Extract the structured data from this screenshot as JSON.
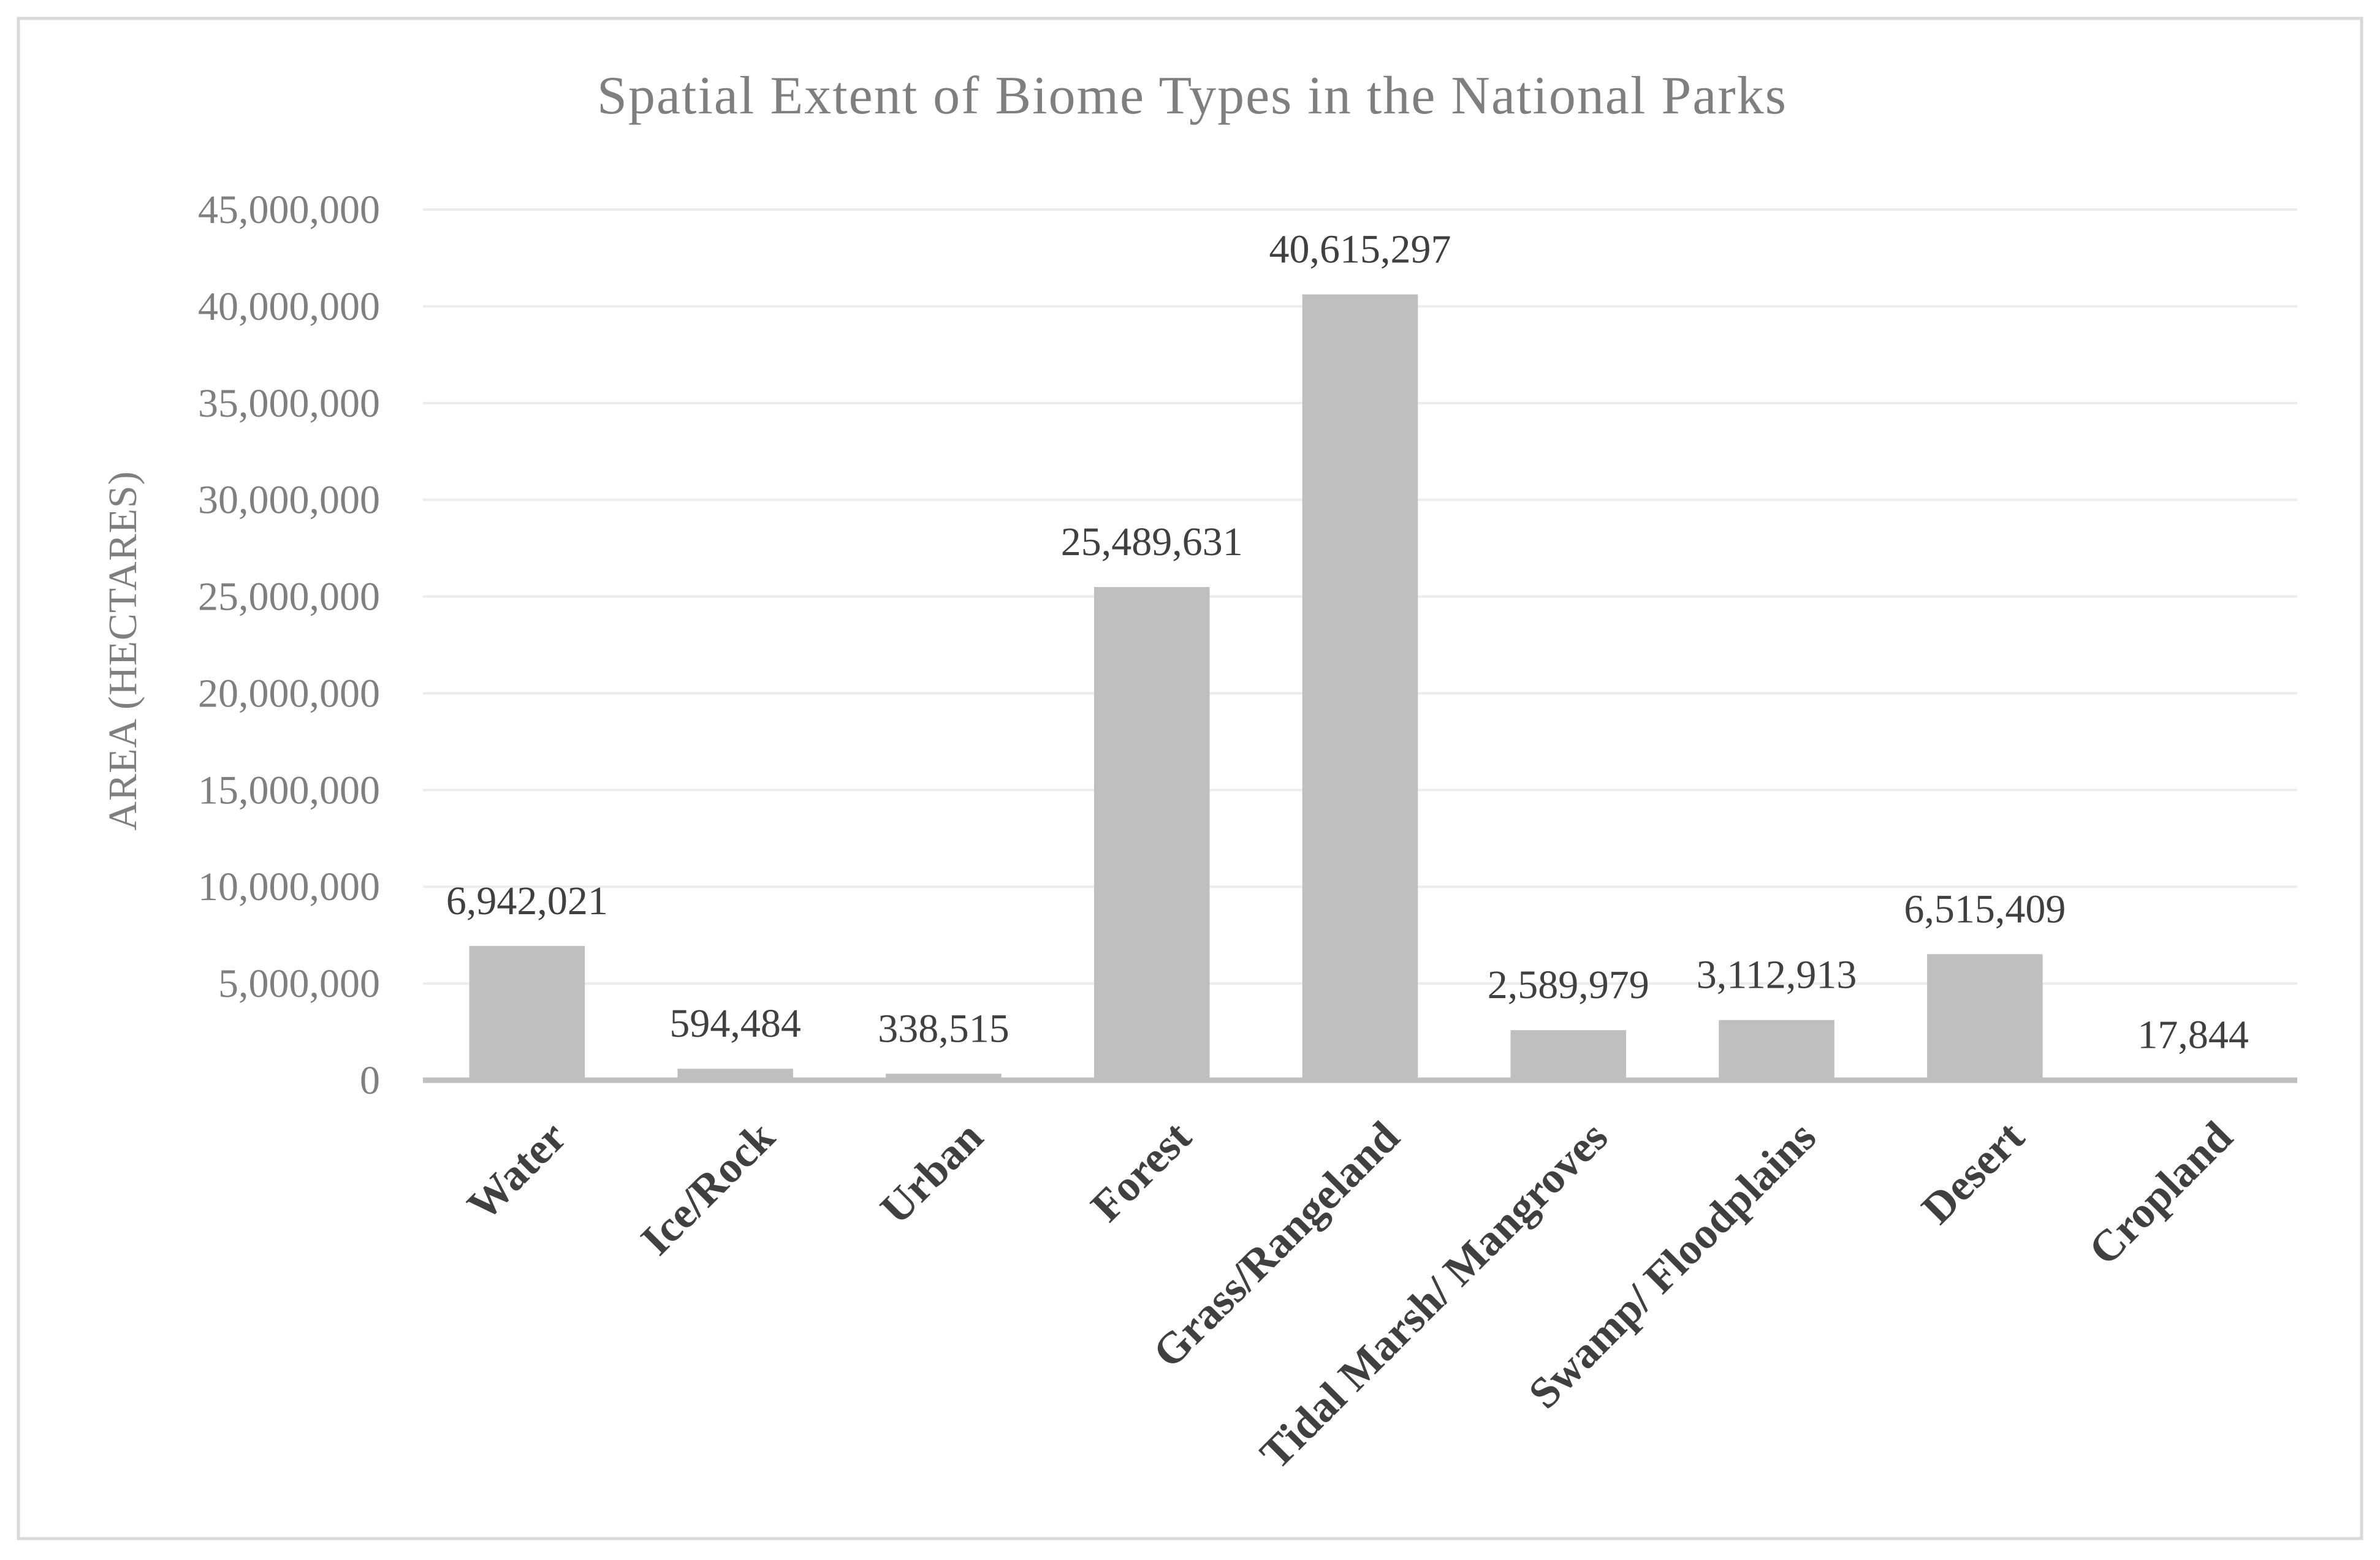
{
  "colors": {
    "bar": "#bfbfbf",
    "gridline": "#ececec",
    "axis_line": "#bfbfbf",
    "frame_border": "#d9d9d9",
    "title_text": "#7f7f7f",
    "label_text": "#404040"
  },
  "chart_data": {
    "type": "bar",
    "title": "Spatial Extent of Biome Types in the National Parks",
    "xlabel": "",
    "ylabel": "AREA (HECTARES)",
    "categories": [
      "Water",
      "Ice/Rock",
      "Urban",
      "Forest",
      "Grass/Rangeland",
      "Tidal Marsh/ Mangroves",
      "Swamp/ Floodplains",
      "Desert",
      "Cropland"
    ],
    "values": [
      6942021,
      594484,
      338515,
      25489631,
      40615297,
      2589979,
      3112913,
      6515409,
      17844
    ],
    "data_labels": [
      "6,942,021",
      "594,484",
      "338,515",
      "25,489,631",
      "40,615,297",
      "2,589,979",
      "3,112,913",
      "6,515,409",
      "17,844"
    ],
    "ylim": [
      0,
      45000000
    ],
    "yticks": [
      0,
      5000000,
      10000000,
      15000000,
      20000000,
      25000000,
      30000000,
      35000000,
      40000000,
      45000000
    ],
    "ytick_labels": [
      "0",
      "5,000,000",
      "10,000,000",
      "15,000,000",
      "20,000,000",
      "25,000,000",
      "30,000,000",
      "35,000,000",
      "40,000,000",
      "45,000,000"
    ],
    "grid": true,
    "legend": "none"
  }
}
